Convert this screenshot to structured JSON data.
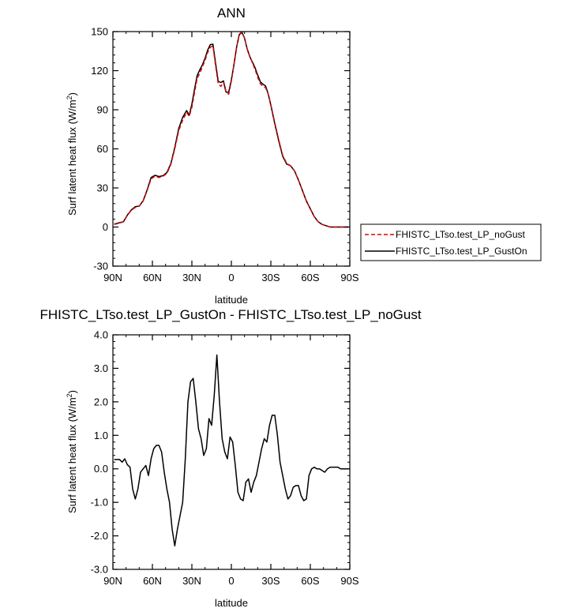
{
  "chart_data": [
    {
      "type": "line",
      "title": "ANN",
      "xlabel": "latitude",
      "ylabel": "Surf latent heat flux (W/m",
      "ylabel_sup": "2",
      "ylabel_close": ")",
      "xlim": [
        90,
        -90
      ],
      "ylim": [
        -30,
        150
      ],
      "xticks": [
        90,
        60,
        30,
        0,
        -30,
        -60,
        -90
      ],
      "xtick_labels": [
        "90N",
        "60N",
        "30N",
        "0",
        "30S",
        "60S",
        "90S"
      ],
      "yticks": [
        -30,
        0,
        30,
        60,
        90,
        120,
        150
      ],
      "ytick_labels": [
        "-30",
        "0",
        "30",
        "60",
        "90",
        "120",
        "150"
      ],
      "legend_position": "right",
      "series": [
        {
          "name": "FHISTC_LTso.test_LP_noGust",
          "color": "#e00000",
          "dash": "dashed",
          "x": [
            89,
            85,
            82,
            79,
            76,
            73,
            70,
            67,
            64,
            61,
            58,
            55,
            52,
            49,
            46,
            43,
            40,
            37,
            34,
            32,
            30,
            28,
            26,
            24,
            22,
            20,
            18,
            16,
            14,
            12,
            10,
            8,
            6,
            4,
            2,
            0,
            -2,
            -4,
            -6,
            -8,
            -10,
            -12,
            -14,
            -16,
            -18,
            -20,
            -22,
            -24,
            -26,
            -28,
            -30,
            -33,
            -36,
            -39,
            -42,
            -45,
            -48,
            -51,
            -54,
            -57,
            -60,
            -63,
            -66,
            -69,
            -72,
            -75,
            -78,
            -81,
            -84,
            -87,
            -89
          ],
          "y": [
            2,
            3,
            4,
            9,
            13,
            15,
            16,
            20,
            28,
            37,
            39,
            38,
            39,
            41,
            48,
            60,
            74,
            82,
            88,
            85,
            92,
            103,
            114,
            118,
            123,
            128,
            134,
            138,
            139,
            124,
            110,
            108,
            111,
            103,
            102,
            112,
            125,
            138,
            148,
            150,
            145,
            137,
            131,
            126,
            121,
            115,
            110,
            108,
            107,
            102,
            94,
            80,
            67,
            55,
            49,
            47,
            43,
            36,
            28,
            20,
            14,
            8,
            4,
            2,
            1,
            0,
            0,
            0,
            0,
            0,
            0
          ]
        },
        {
          "name": "FHISTC_LTso.test_LP_GustOn",
          "color": "#000000",
          "dash": "solid",
          "x": [
            89,
            85,
            82,
            79,
            76,
            73,
            70,
            67,
            64,
            61,
            58,
            55,
            52,
            49,
            46,
            43,
            40,
            37,
            34,
            32,
            30,
            28,
            26,
            24,
            22,
            20,
            18,
            16,
            14,
            12,
            10,
            8,
            6,
            4,
            2,
            0,
            -2,
            -4,
            -6,
            -8,
            -10,
            -12,
            -14,
            -16,
            -18,
            -20,
            -22,
            -24,
            -26,
            -28,
            -30,
            -33,
            -36,
            -39,
            -42,
            -45,
            -48,
            -51,
            -54,
            -57,
            -60,
            -63,
            -66,
            -69,
            -72,
            -75,
            -78,
            -81,
            -84,
            -87,
            -89
          ],
          "y": [
            2.3,
            3.3,
            4.1,
            9.2,
            13.1,
            15.6,
            16.1,
            20.2,
            28.5,
            38.0,
            39.7,
            38.7,
            39.4,
            41.8,
            48.6,
            61.0,
            75.6,
            84.2,
            89.4,
            85.8,
            94.3,
            105.7,
            116.3,
            120.6,
            124.5,
            129.5,
            135.8,
            140.0,
            140.3,
            125.8,
            111.9,
            110.9,
            112.2,
            103.5,
            103.5,
            112.9,
            124.7,
            138.2,
            147.6,
            149.5,
            145.0,
            136.7,
            130.8,
            126.6,
            122.3,
            116.7,
            111.5,
            109.6,
            108.3,
            102.2,
            93.5,
            79.3,
            66.1,
            54.3,
            48.4,
            47.0,
            43.1,
            36.0,
            28.0,
            20.0,
            14.0,
            8.0,
            4.0,
            2.0,
            1.0,
            0.0,
            0.0,
            0.0,
            0.0,
            0.0,
            0.0
          ]
        }
      ]
    },
    {
      "type": "line",
      "title": "FHISTC_LTso.test_LP_GustOn - FHISTC_LTso.test_LP_noGust",
      "xlabel": "latitude",
      "ylabel": "Surf latent heat flux (W/m",
      "ylabel_sup": "2",
      "ylabel_close": ")",
      "xlim": [
        90,
        -90
      ],
      "ylim": [
        -3,
        4
      ],
      "xticks": [
        90,
        60,
        30,
        0,
        -30,
        -60,
        -90
      ],
      "xtick_labels": [
        "90N",
        "60N",
        "30N",
        "0",
        "30S",
        "60S",
        "90S"
      ],
      "yticks": [
        -3,
        -2,
        -1,
        0,
        1,
        2,
        3,
        4
      ],
      "ytick_labels": [
        "-3.0",
        "-2.0",
        "-1.0",
        "0.0",
        "1.0",
        "2.0",
        "3.0",
        "4.0"
      ],
      "series": [
        {
          "color": "#000000",
          "dash": "solid",
          "x": [
            89,
            85,
            83,
            81,
            79,
            77,
            75,
            73,
            71,
            69,
            67,
            65,
            63,
            61,
            59,
            57,
            55,
            53,
            51,
            49,
            47,
            45,
            43,
            41,
            39,
            37,
            35,
            33,
            31,
            29,
            27,
            25,
            23,
            21,
            19,
            17,
            15,
            13,
            11,
            9,
            7,
            5,
            3,
            1,
            -1,
            -3,
            -5,
            -7,
            -9,
            -11,
            -13,
            -15,
            -17,
            -19,
            -21,
            -23,
            -25,
            -27,
            -29,
            -31,
            -33,
            -35,
            -37,
            -39,
            -41,
            -43,
            -45,
            -47,
            -49,
            -51,
            -53,
            -55,
            -57,
            -59,
            -61,
            -63,
            -65,
            -67,
            -69,
            -71,
            -73,
            -75,
            -77,
            -79,
            -81,
            -83,
            -85,
            -87,
            -89
          ],
          "y": [
            0.28,
            0.28,
            0.2,
            0.3,
            0.12,
            0.05,
            -0.6,
            -0.9,
            -0.6,
            -0.1,
            0.0,
            0.1,
            -0.2,
            0.3,
            0.6,
            0.7,
            0.7,
            0.5,
            -0.1,
            -0.6,
            -1.0,
            -1.8,
            -2.3,
            -1.8,
            -1.4,
            -1.0,
            0.3,
            2.0,
            2.6,
            2.7,
            2.0,
            1.2,
            0.9,
            0.4,
            0.6,
            1.5,
            1.3,
            2.2,
            3.4,
            2.0,
            0.9,
            0.5,
            0.3,
            0.95,
            0.8,
            0.1,
            -0.7,
            -0.9,
            -0.95,
            -0.4,
            -0.3,
            -0.7,
            -0.4,
            -0.2,
            0.2,
            0.6,
            0.9,
            0.8,
            1.3,
            1.6,
            1.6,
            1.0,
            0.2,
            -0.2,
            -0.6,
            -0.9,
            -0.8,
            -0.55,
            -0.5,
            -0.5,
            -0.8,
            -0.95,
            -0.9,
            -0.2,
            0.0,
            0.05,
            0.0,
            0.0,
            -0.05,
            -0.1,
            0.0,
            0.05,
            0.05,
            0.05,
            0.05,
            0.0,
            0.0,
            0.0,
            0.0
          ]
        }
      ]
    }
  ]
}
